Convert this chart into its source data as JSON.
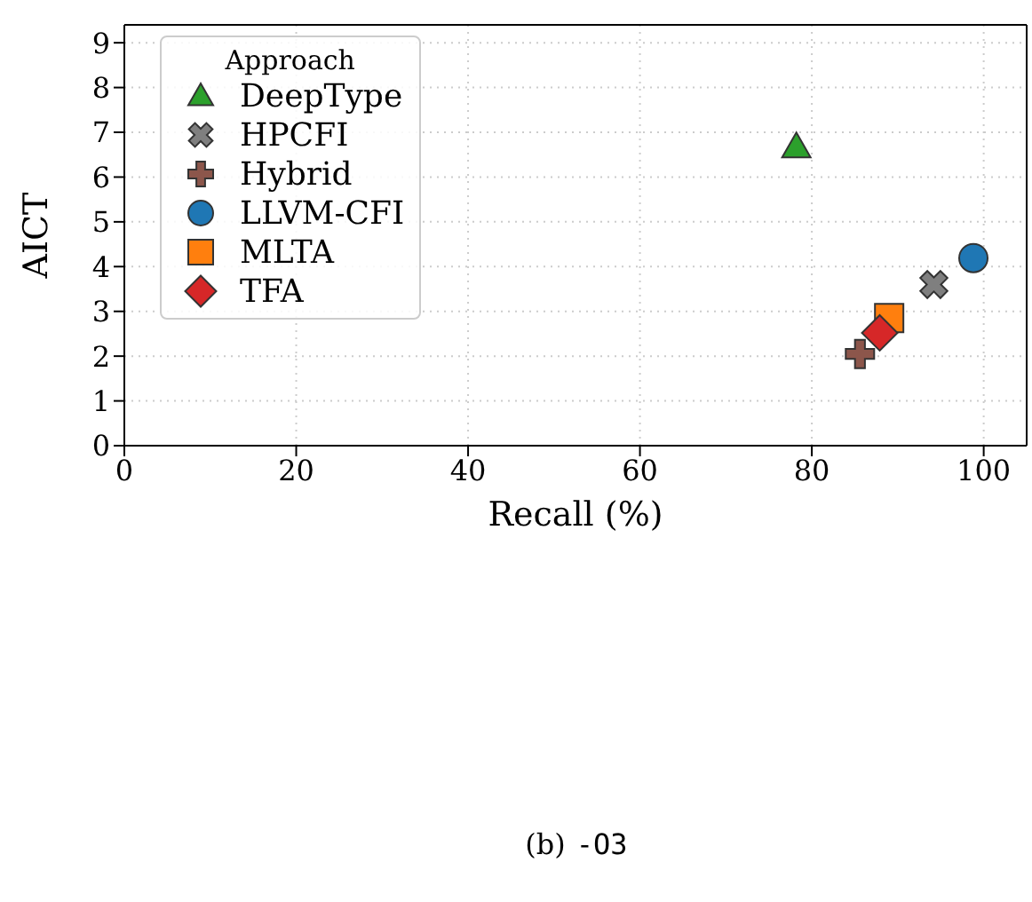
{
  "chart_data": {
    "type": "scatter",
    "xlabel": "Recall (%)",
    "ylabel": "AICT",
    "legend_title": "Approach",
    "legend": "top left",
    "grid": true,
    "xlim": [
      0,
      105
    ],
    "xticks": [
      0,
      20,
      40,
      60,
      80,
      100
    ],
    "ylim": [
      0,
      9.4
    ],
    "yticks": [
      0,
      1,
      2,
      3,
      4,
      5,
      6,
      7,
      8,
      9
    ],
    "annotations": [
      "(b)",
      "-O3"
    ],
    "series": [
      {
        "name": "DeepType",
        "color": "#2ca02c",
        "marker": "triangle",
        "x": [
          78.2
        ],
        "values": [
          6.68
        ]
      },
      {
        "name": "HPCFI",
        "color": "#7f7f7f",
        "marker": "cross",
        "x": [
          94.2
        ],
        "values": [
          3.6
        ]
      },
      {
        "name": "Hybrid",
        "color": "#8c564b",
        "marker": "plus",
        "x": [
          85.6
        ],
        "values": [
          2.05
        ]
      },
      {
        "name": "LLVM-CFI",
        "color": "#1f77b4",
        "marker": "circle",
        "x": [
          98.8
        ],
        "values": [
          4.19
        ]
      },
      {
        "name": "MLTA",
        "color": "#ff7f0e",
        "marker": "square",
        "x": [
          89.0
        ],
        "values": [
          2.85
        ]
      },
      {
        "name": "TFA",
        "color": "#d62728",
        "marker": "diamond",
        "x": [
          87.9
        ],
        "values": [
          2.52
        ]
      }
    ]
  }
}
